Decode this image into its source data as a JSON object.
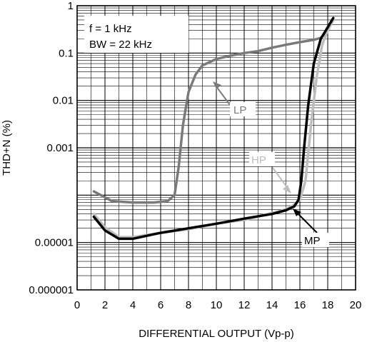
{
  "chart_data": {
    "type": "line",
    "xlabel": "DIFFERENTIAL OUTPUT (Vp-p)",
    "ylabel": "THD+N (%)",
    "xlim": [
      0,
      20
    ],
    "ylim": [
      1e-06,
      1
    ],
    "yscale": "log",
    "grid": true,
    "x_ticks": [
      0,
      2,
      4,
      6,
      8,
      10,
      12,
      14,
      16,
      18,
      20
    ],
    "y_ticks": [
      1,
      0.1,
      0.01,
      0.001,
      0.0001,
      1e-05,
      1e-06
    ],
    "y_tick_labels": [
      "1",
      "0.1",
      "0.01",
      "0.001",
      "",
      "0.00001",
      "0.000001"
    ],
    "annotations": [
      "f = 1 kHz",
      "BW = 22 kHz"
    ],
    "series": [
      {
        "name": "LP",
        "color": "#7a7a7a",
        "x": [
          1.2,
          2.5,
          4.0,
          5.5,
          6.5,
          7.0,
          7.3,
          7.6,
          8.0,
          8.5,
          9.0,
          10.0,
          11.0,
          12.0,
          13.0,
          14.0,
          15.0,
          16.0,
          17.0,
          17.5,
          17.9,
          18.2,
          18.4
        ],
        "y": [
          0.00012,
          7.5e-05,
          7e-05,
          7e-05,
          7.5e-05,
          0.0001,
          0.0004,
          0.003,
          0.015,
          0.035,
          0.055,
          0.075,
          0.088,
          0.1,
          0.11,
          0.13,
          0.15,
          0.17,
          0.19,
          0.21,
          0.28,
          0.4,
          0.5
        ]
      },
      {
        "name": "HP",
        "color": "#bdbdbd",
        "x": [
          1.2,
          2.0,
          3.0,
          4.0,
          6.0,
          8.0,
          10.0,
          12.0,
          14.0,
          15.0,
          15.5,
          16.0,
          16.4,
          16.8,
          17.2,
          17.6,
          18.0,
          18.4
        ],
        "y": [
          4e-05,
          2.1e-05,
          1.3e-05,
          1.3e-05,
          1.6e-05,
          1.9e-05,
          2.5e-05,
          3e-05,
          4.2e-05,
          5e-05,
          6e-05,
          8e-05,
          0.0002,
          0.003,
          0.03,
          0.15,
          0.3,
          0.5
        ]
      },
      {
        "name": "MP",
        "color": "#000000",
        "x": [
          1.2,
          2.0,
          3.0,
          4.0,
          6.0,
          8.0,
          10.0,
          12.0,
          14.0,
          15.0,
          15.6,
          15.9,
          16.1,
          16.3,
          16.6,
          17.0,
          17.5,
          18.0,
          18.4
        ],
        "y": [
          3.5e-05,
          1.8e-05,
          1.2e-05,
          1.2e-05,
          1.6e-05,
          2e-05,
          2.5e-05,
          3.2e-05,
          4e-05,
          4.8e-05,
          5.8e-05,
          8e-05,
          0.0002,
          0.001,
          0.008,
          0.06,
          0.2,
          0.35,
          0.55
        ]
      }
    ]
  }
}
